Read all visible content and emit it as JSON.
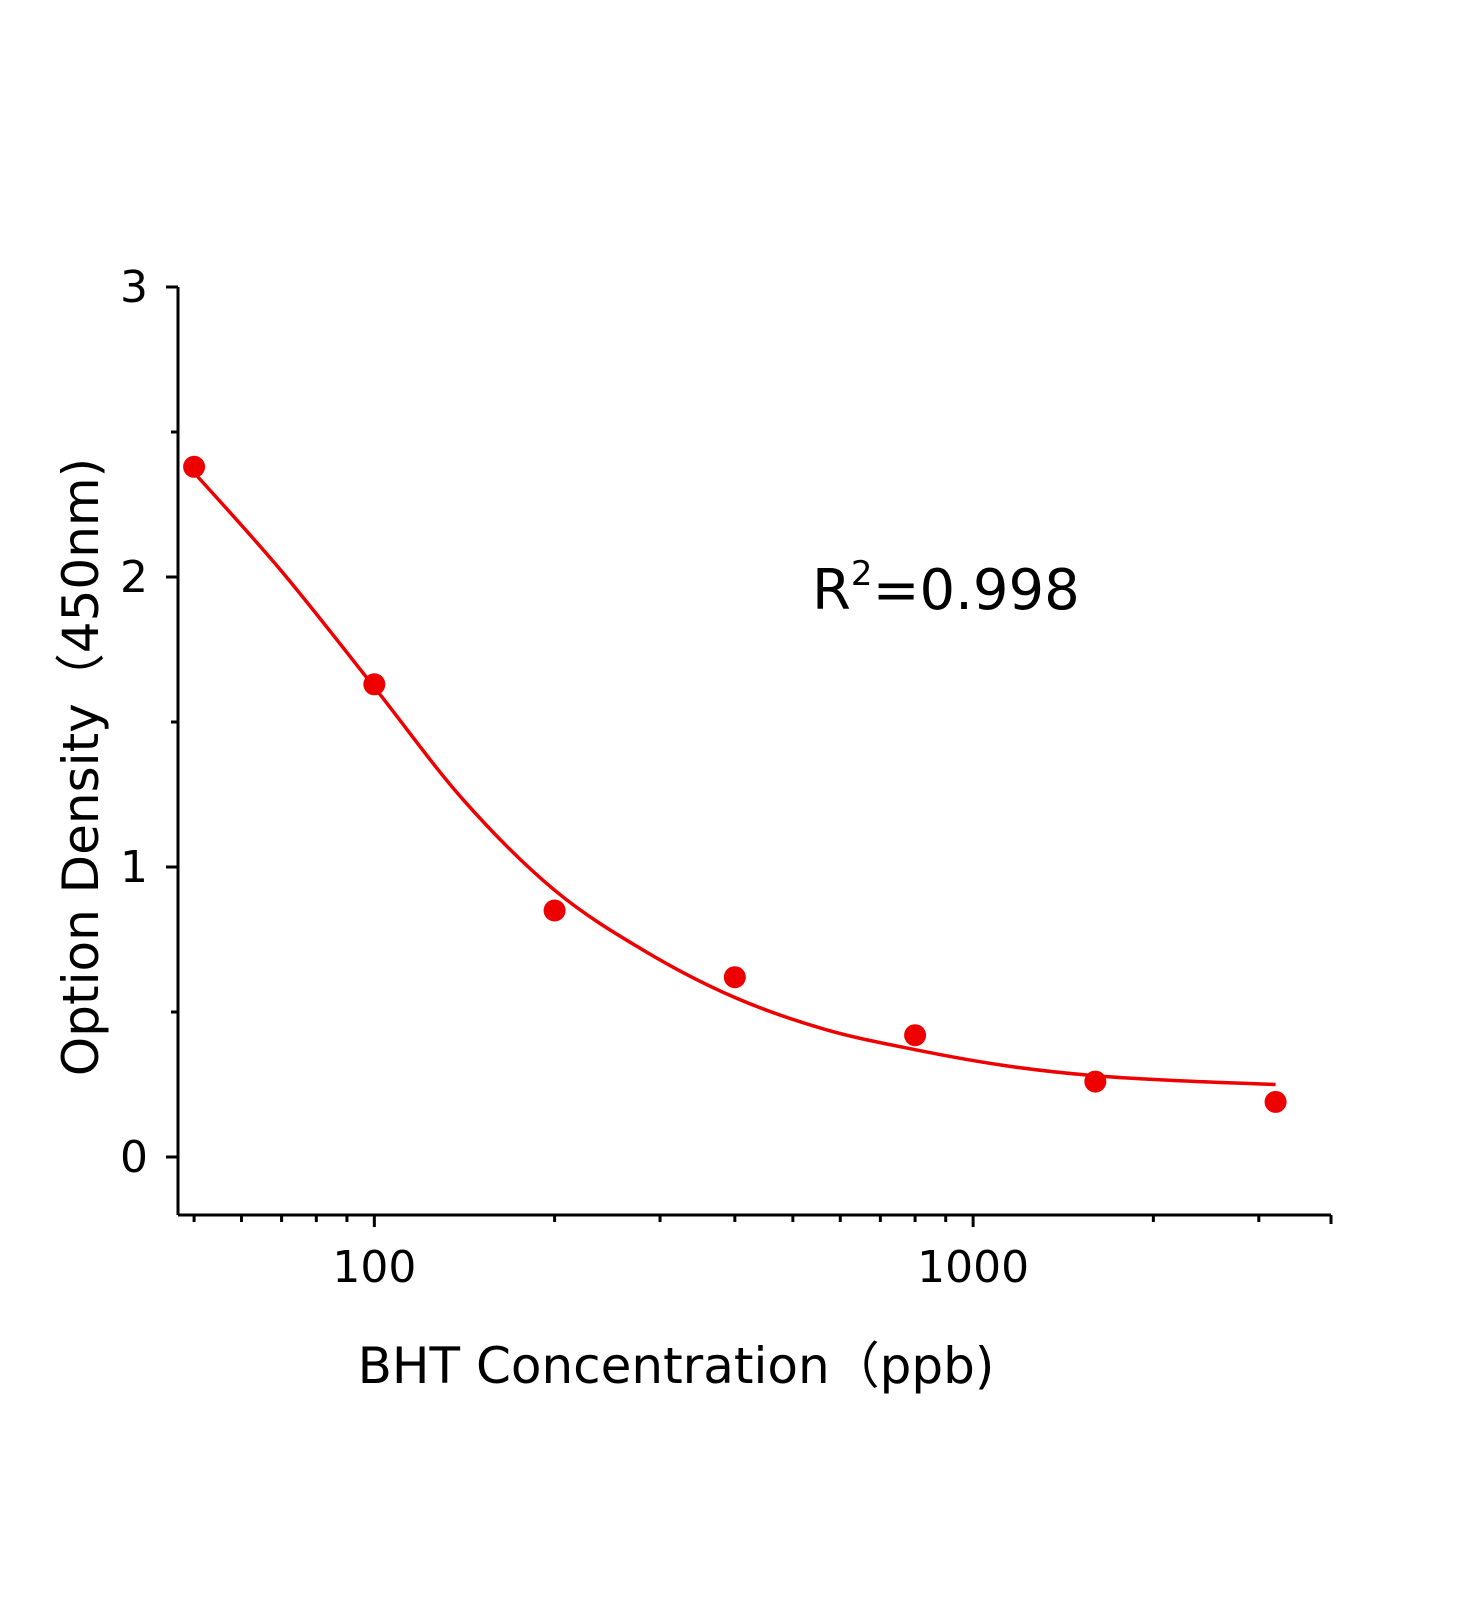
{
  "chart_data": {
    "type": "scatter",
    "title": "",
    "xlabel": "BHT Concentration（ppb)",
    "ylabel": "Option Density（450nm)",
    "x_scale": "log",
    "xlim": [
      47,
      3960
    ],
    "ylim": [
      -0.2,
      3
    ],
    "x_ticks": [
      100,
      1000
    ],
    "x_tick_labels": [
      "100",
      "1000"
    ],
    "y_ticks": [
      0,
      1,
      2,
      3
    ],
    "y_tick_labels": [
      "0",
      "1",
      "2",
      "3"
    ],
    "grid": false,
    "color": "#ee0000",
    "annotation": {
      "base": "R",
      "sup": "2",
      "rest": "=0.998"
    },
    "series": [
      {
        "kind": "points",
        "x": [
          50,
          100,
          200,
          400,
          800,
          1600,
          3200
        ],
        "y": [
          2.38,
          1.63,
          0.85,
          0.62,
          0.42,
          0.26,
          0.19
        ]
      },
      {
        "kind": "fit-curve",
        "x": [
          50,
          70,
          100,
          141,
          200,
          283,
          400,
          566,
          800,
          1131,
          1600,
          2263,
          3200
        ],
        "y": [
          2.36,
          2.02,
          1.62,
          1.23,
          0.92,
          0.71,
          0.55,
          0.44,
          0.37,
          0.315,
          0.28,
          0.262,
          0.25
        ]
      }
    ]
  }
}
